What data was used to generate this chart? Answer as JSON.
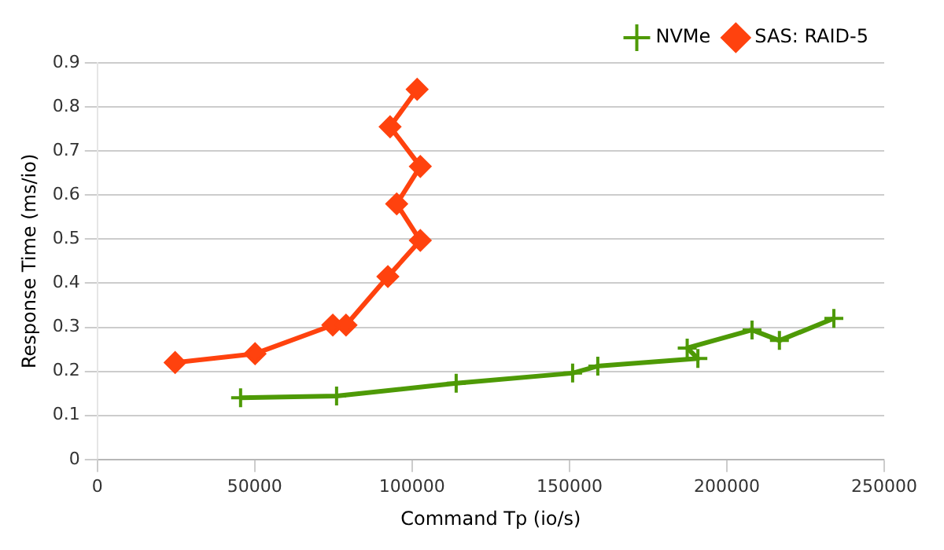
{
  "chart_data": {
    "type": "line",
    "xlabel": "Command Tp (io/s)",
    "ylabel": "Response Time (ms/io)",
    "xlim": [
      0,
      250000
    ],
    "xticks": [
      0,
      50000,
      100000,
      150000,
      200000,
      250000
    ],
    "ylim": [
      0,
      0.9
    ],
    "yticks": [
      0,
      0.1,
      0.2,
      0.3,
      0.4,
      0.5,
      0.6,
      0.7,
      0.8,
      0.9
    ],
    "grid": "y",
    "legend": "top right",
    "line_style": "solid",
    "series": [
      {
        "name": "NVMe",
        "color": "#4e9a06",
        "marker": "cross",
        "x": [
          45500,
          76000,
          114000,
          151000,
          159000,
          190800,
          187400,
          208000,
          216700,
          234000
        ],
        "values": [
          0.14,
          0.144,
          0.173,
          0.196,
          0.212,
          0.229,
          0.253,
          0.294,
          0.27,
          0.32
        ]
      },
      {
        "name": "SAS: RAID-5",
        "color": "#ff420e",
        "marker": "diamond",
        "x": [
          24700,
          50100,
          74800,
          79000,
          92300,
          102600,
          95100,
          102600,
          93000,
          101600
        ],
        "values": [
          0.22,
          0.24,
          0.305,
          0.305,
          0.415,
          0.497,
          0.58,
          0.665,
          0.755,
          0.84
        ]
      }
    ]
  }
}
